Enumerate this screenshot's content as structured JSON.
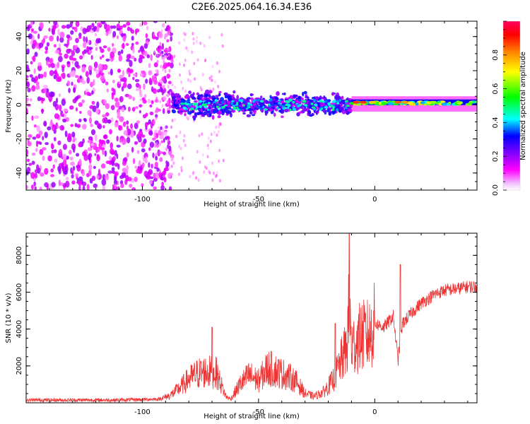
{
  "title": "C2E6.2025.064.16.34.E36",
  "chart_data": [
    {
      "type": "heatmap",
      "xlabel": "Height of straight line (km)",
      "ylabel": "Frequency (Hz)",
      "xlim": [
        -150,
        44
      ],
      "ylim": [
        -50,
        49
      ],
      "xticks": [
        -100,
        -50,
        0
      ],
      "yticks": [
        -40,
        -20,
        0,
        20,
        40
      ],
      "colorbar": {
        "label": "Normalized spectral amplitude",
        "range": [
          0.0,
          1.0
        ],
        "ticks": [
          0.0,
          0.2,
          0.4,
          0.6,
          0.8
        ],
        "tick_labels": [
          "0.0",
          "0.2",
          "0.4",
          "0.6",
          "0.8"
        ],
        "colormap": [
          "#ffffff",
          "#ff00ff",
          "#8000ff",
          "#0000ff",
          "#00ffff",
          "#00ff00",
          "#ffff00",
          "#ff8000",
          "#ff0000"
        ]
      },
      "regions": [
        {
          "x": [
            -150,
            -87
          ],
          "freq": [
            -50,
            49
          ],
          "amplitude": 0.15,
          "description": "broadband noise"
        },
        {
          "x": [
            -87,
            -10
          ],
          "freq": [
            -10,
            10
          ],
          "amplitude": 0.3,
          "description": "broad signal band"
        },
        {
          "x": [
            -10,
            44
          ],
          "freq": [
            -2,
            3
          ],
          "amplitude": 0.55,
          "description": "narrow strong signal band"
        }
      ]
    },
    {
      "type": "line",
      "xlabel": "Height of straight line (km)",
      "ylabel": "SNR (10 * v/v)",
      "xlim": [
        -150,
        44
      ],
      "ylim": [
        0,
        9200
      ],
      "xticks": [
        -100,
        -50,
        0
      ],
      "yticks": [
        2000,
        4000,
        6000,
        8000
      ],
      "color": "#ee3333",
      "series_points": {
        "x": [
          -150,
          -110,
          -93,
          -88,
          -84,
          -80,
          -76,
          -72,
          -68,
          -64,
          -62,
          -58,
          -54,
          -50,
          -46,
          -42,
          -38,
          -34,
          -30,
          -26,
          -22,
          -18,
          -15,
          -12,
          -11,
          -10,
          -6,
          -2,
          0,
          4,
          8,
          10,
          12,
          16,
          20,
          26,
          30,
          36,
          40,
          44
        ],
        "y": [
          150,
          150,
          200,
          400,
          800,
          1300,
          1600,
          1700,
          1600,
          350,
          200,
          1000,
          1500,
          1200,
          1900,
          1700,
          1500,
          1200,
          500,
          350,
          600,
          1200,
          2100,
          3000,
          5200,
          3000,
          3600,
          3700,
          4300,
          4100,
          4700,
          2300,
          4300,
          4900,
          5400,
          5900,
          6100,
          6200,
          6300,
          6300
        ]
      },
      "spikes": [
        {
          "x": -11,
          "y": 9200
        },
        {
          "x": 11,
          "y": 7500
        },
        {
          "x": -70,
          "y": 4100
        },
        {
          "x": -17,
          "y": 4300
        }
      ]
    }
  ]
}
